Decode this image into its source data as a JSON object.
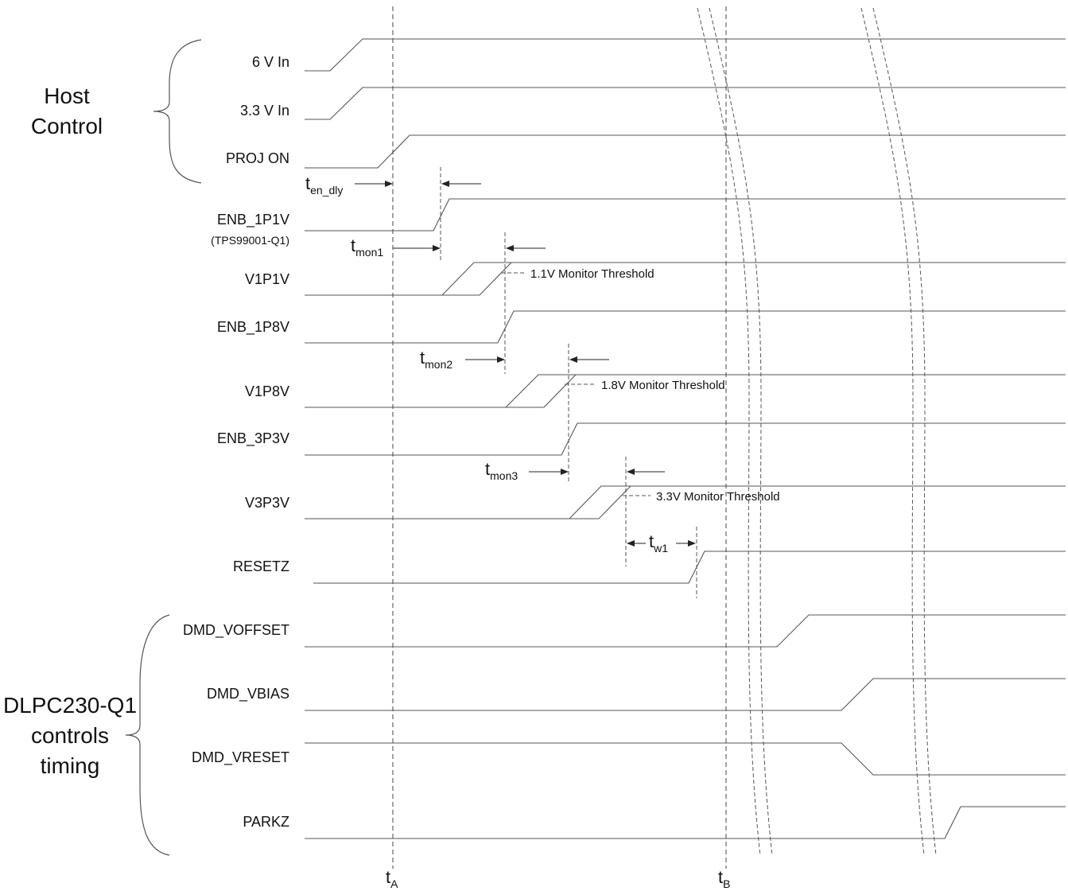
{
  "groups": {
    "host": {
      "line1": "Host",
      "line2": "Control"
    },
    "dlpc": {
      "line1": "DLPC230-Q1",
      "line2": "controls",
      "line3": "timing"
    }
  },
  "signals": {
    "s6v": "6 V In",
    "s33v": "3.3 V In",
    "proj_on": "PROJ ON",
    "enb_1p1v": "ENB_1P1V",
    "enb_1p1v_note": "(TPS99001-Q1)",
    "v1p1v": "V1P1V",
    "enb_1p8v": "ENB_1P8V",
    "v1p8v": "V1P8V",
    "enb_3p3v": "ENB_3P3V",
    "v3p3v": "V3P3V",
    "resetz": "RESETZ",
    "dmd_voffset": "DMD_VOFFSET",
    "dmd_vbias": "DMD_VBIAS",
    "dmd_vreset": "DMD_VRESET",
    "parkz": "PARKZ"
  },
  "thresholds": {
    "t11": "1.1V Monitor Threshold",
    "t18": "1.8V Monitor Threshold",
    "t33": "3.3V Monitor Threshold"
  },
  "timing": {
    "en_dly": {
      "main": "t",
      "sub": "en_dly"
    },
    "mon1": {
      "main": "t",
      "sub": "mon1"
    },
    "mon2": {
      "main": "t",
      "sub": "mon2"
    },
    "mon3": {
      "main": "t",
      "sub": "mon3"
    },
    "w1": {
      "main": "t",
      "sub": "w1"
    },
    "ta": {
      "main": "t",
      "sub": "A"
    },
    "tb": {
      "main": "t",
      "sub": "B"
    }
  }
}
